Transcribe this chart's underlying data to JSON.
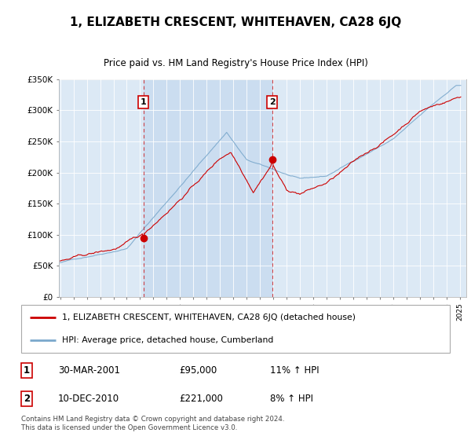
{
  "title": "1, ELIZABETH CRESCENT, WHITEHAVEN, CA28 6JQ",
  "subtitle": "Price paid vs. HM Land Registry's House Price Index (HPI)",
  "legend_line1": "1, ELIZABETH CRESCENT, WHITEHAVEN, CA28 6JQ (detached house)",
  "legend_line2": "HPI: Average price, detached house, Cumberland",
  "footnote": "Contains HM Land Registry data © Crown copyright and database right 2024.\nThis data is licensed under the Open Government Licence v3.0.",
  "table_rows": [
    {
      "num": 1,
      "date": "30-MAR-2001",
      "price": "£95,000",
      "hpi": "11% ↑ HPI"
    },
    {
      "num": 2,
      "date": "10-DEC-2010",
      "price": "£221,000",
      "hpi": "8% ↑ HPI"
    }
  ],
  "sale1_year": 2001.25,
  "sale2_year": 2010.92,
  "sale1_price": 95000,
  "sale2_price": 221000,
  "ylim": [
    0,
    350000
  ],
  "xlim_start": 1994.9,
  "xlim_end": 2025.5,
  "bg_color": "#dce9f5",
  "shade_color": "#c5d8ee",
  "red_color": "#cc0000",
  "blue_color": "#7aa8cc",
  "yticks": [
    0,
    50000,
    100000,
    150000,
    200000,
    250000,
    300000,
    350000
  ],
  "ytick_labels": [
    "£0",
    "£50K",
    "£100K",
    "£150K",
    "£200K",
    "£250K",
    "£300K",
    "£350K"
  ]
}
